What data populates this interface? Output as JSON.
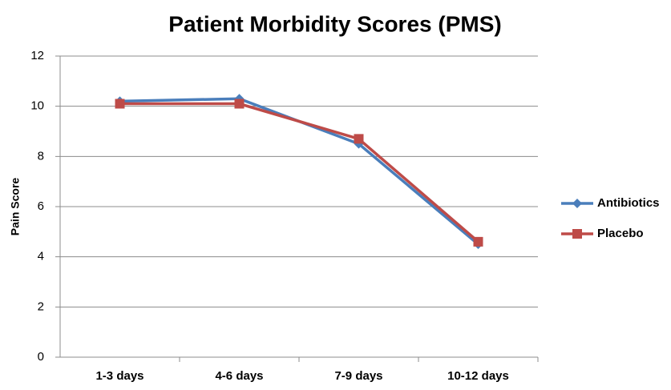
{
  "chart_data": {
    "type": "line",
    "title": "Patient Morbidity Scores (PMS)",
    "y_label": "Pain Score",
    "categories": [
      "1-3 days",
      "4-6 days",
      "7-9 days",
      "10-12 days"
    ],
    "series": [
      {
        "name": "Antibiotics",
        "color": "#4a7ebb",
        "marker": "diamond",
        "values": [
          10.2,
          10.3,
          8.5,
          4.5
        ]
      },
      {
        "name": "Placebo",
        "color": "#be4b48",
        "marker": "square",
        "values": [
          10.1,
          10.1,
          8.7,
          4.6
        ]
      }
    ],
    "ylim": [
      0,
      12
    ],
    "yticks": [
      0,
      2,
      4,
      6,
      8,
      10,
      12
    ],
    "grid": true,
    "legend": "right"
  }
}
